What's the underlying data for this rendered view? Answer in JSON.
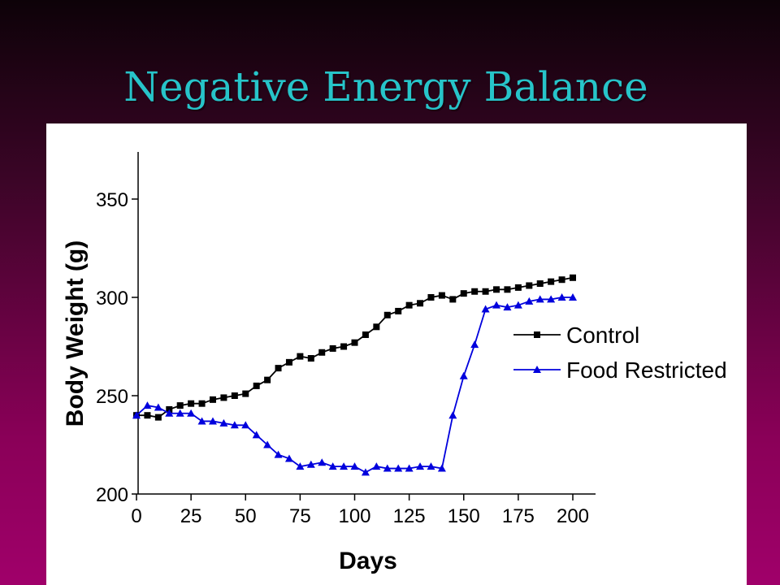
{
  "slide": {
    "title": "Negative Energy Balance"
  },
  "chart_data": {
    "type": "line",
    "title": "",
    "xlabel": "Days",
    "ylabel": "Body Weight (g)",
    "xlim": [
      0,
      210
    ],
    "ylim": [
      200,
      375
    ],
    "xticks": [
      0,
      25,
      50,
      75,
      100,
      125,
      150,
      175,
      200
    ],
    "yticks": [
      200,
      250,
      300,
      350
    ],
    "grid": false,
    "legend_position": "right",
    "series": [
      {
        "name": "Control",
        "color": "#000000",
        "marker": "square",
        "x": [
          0,
          5,
          10,
          15,
          20,
          25,
          30,
          35,
          40,
          45,
          50,
          55,
          60,
          65,
          70,
          75,
          80,
          85,
          90,
          95,
          100,
          105,
          110,
          115,
          120,
          125,
          130,
          135,
          140,
          145,
          150,
          155,
          160,
          165,
          170,
          175,
          180,
          185,
          190,
          195,
          200
        ],
        "y": [
          240,
          240,
          239,
          243,
          245,
          246,
          246,
          248,
          249,
          250,
          251,
          255,
          258,
          264,
          267,
          270,
          269,
          272,
          274,
          275,
          277,
          281,
          285,
          291,
          293,
          296,
          297,
          300,
          301,
          299,
          302,
          303,
          303,
          304,
          304,
          305,
          306,
          307,
          308,
          309,
          310
        ]
      },
      {
        "name": "Food Restricted",
        "color": "#0000dd",
        "marker": "triangle",
        "x": [
          0,
          5,
          10,
          15,
          20,
          25,
          30,
          35,
          40,
          45,
          50,
          55,
          60,
          65,
          70,
          75,
          80,
          85,
          90,
          95,
          100,
          105,
          110,
          115,
          120,
          125,
          130,
          135,
          140,
          145,
          150,
          155,
          160,
          165,
          170,
          175,
          180,
          185,
          190,
          195,
          200
        ],
        "y": [
          240,
          245,
          244,
          241,
          241,
          241,
          237,
          237,
          236,
          235,
          235,
          230,
          225,
          220,
          218,
          214,
          215,
          216,
          214,
          214,
          214,
          211,
          214,
          213,
          213,
          213,
          214,
          214,
          213,
          240,
          260,
          276,
          294,
          296,
          295,
          296,
          298,
          299,
          299,
          300,
          300
        ]
      }
    ]
  }
}
